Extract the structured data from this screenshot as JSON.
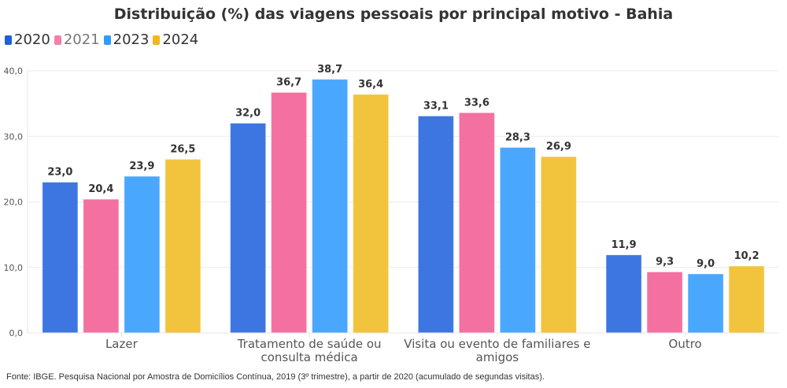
{
  "chart_data": {
    "type": "bar",
    "title": "Distribuição (%) das viagens pessoais por principal motivo - Bahia",
    "xlabel": "",
    "ylabel": "",
    "ylim": [
      0,
      40
    ],
    "yticks": [
      0,
      10,
      20,
      30,
      40
    ],
    "ytick_labels": [
      "0,0",
      "10,0",
      "20,0",
      "30,0",
      "40,0"
    ],
    "grid": true,
    "legend_position": "top-left",
    "categories": [
      "Lazer",
      "Tratamento de saúde ou consulta médica",
      "Visita ou evento de familiares e amigos",
      "Outro"
    ],
    "category_lines": [
      [
        "Lazer"
      ],
      [
        "Tratamento de saúde ou",
        "consulta médica"
      ],
      [
        "Visita ou evento de familiares e",
        "amigos"
      ],
      [
        "Outro"
      ]
    ],
    "series": [
      {
        "name": "2020",
        "color": "#3d76e1",
        "values": [
          23.0,
          32.0,
          33.1,
          11.9
        ],
        "labels": [
          "23,0",
          "32,0",
          "33,1",
          "11,9"
        ]
      },
      {
        "name": "2021",
        "color": "#f470a0",
        "values": [
          20.4,
          36.7,
          33.6,
          9.3
        ],
        "labels": [
          "20,4",
          "36,7",
          "33,6",
          "9,3"
        ]
      },
      {
        "name": "2023",
        "color": "#4aa7fe",
        "values": [
          23.9,
          38.7,
          28.3,
          9.0
        ],
        "labels": [
          "23,9",
          "38,7",
          "28,3",
          "9,0"
        ]
      },
      {
        "name": "2024",
        "color": "#f2c43d",
        "values": [
          26.5,
          36.4,
          26.9,
          10.2
        ],
        "labels": [
          "26,5",
          "36,4",
          "26,9",
          "10,2"
        ]
      }
    ]
  },
  "legend": {
    "items": [
      {
        "label": "2020",
        "color": "#1f5fd9"
      },
      {
        "label": "2021",
        "color": "#f57fab"
      },
      {
        "label": "2023",
        "color": "#2f9bff"
      },
      {
        "label": "2024",
        "color": "#f1b817"
      }
    ]
  },
  "footer": {
    "source": "Fonte: IBGE. Pesquisa Nacional por Amostra de Domicílios Contínua, 2019 (3º trimestre), a partir de 2020 (acumulado de segundas visitas)."
  }
}
